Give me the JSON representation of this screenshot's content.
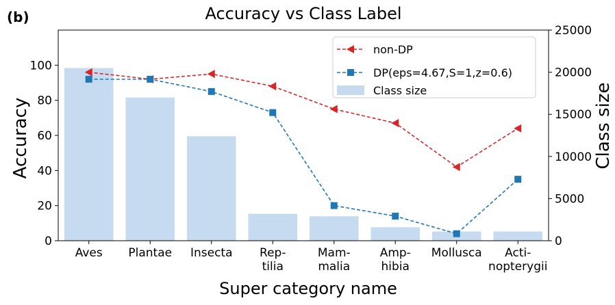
{
  "panel_label": "(b)",
  "chart_data": {
    "type": "bar+line",
    "title": "Accuracy vs Class Label",
    "xlabel": "Super category name",
    "ylabel": "Accuracy",
    "y2label": "Class size",
    "categories": [
      [
        "Aves"
      ],
      [
        "Plantae"
      ],
      [
        "Insecta"
      ],
      [
        "Rep-",
        "tilia"
      ],
      [
        "Mam-",
        "malia"
      ],
      [
        "Amp-",
        "hibia"
      ],
      [
        "Mollusca"
      ],
      [
        "Acti-",
        "nopterygii"
      ]
    ],
    "ylim": [
      0,
      120
    ],
    "yticks": [
      "0",
      "20",
      "40",
      "60",
      "80",
      "100"
    ],
    "y2lim": [
      0,
      25000
    ],
    "y2ticks": [
      "0",
      "5000",
      "10000",
      "15000",
      "20000",
      "25000"
    ],
    "series": [
      {
        "name": "non-DP",
        "kind": "line",
        "axis": "left",
        "color": "#d62728",
        "marker": "triangle-left",
        "values": [
          96,
          92,
          95,
          88,
          75,
          67,
          42,
          64
        ]
      },
      {
        "name": "DP(eps=4.67,S=1,z=0.6)",
        "kind": "line",
        "axis": "left",
        "color": "#1f77b4",
        "marker": "square",
        "values": [
          92,
          92,
          85,
          73,
          20,
          14,
          4,
          35
        ]
      },
      {
        "name": "Class size",
        "kind": "bar",
        "axis": "right",
        "color": "#c6dbef",
        "values": [
          20500,
          17000,
          12400,
          3200,
          2900,
          1600,
          1100,
          1100
        ]
      }
    ],
    "legend_position": "top-right",
    "grid": false
  }
}
